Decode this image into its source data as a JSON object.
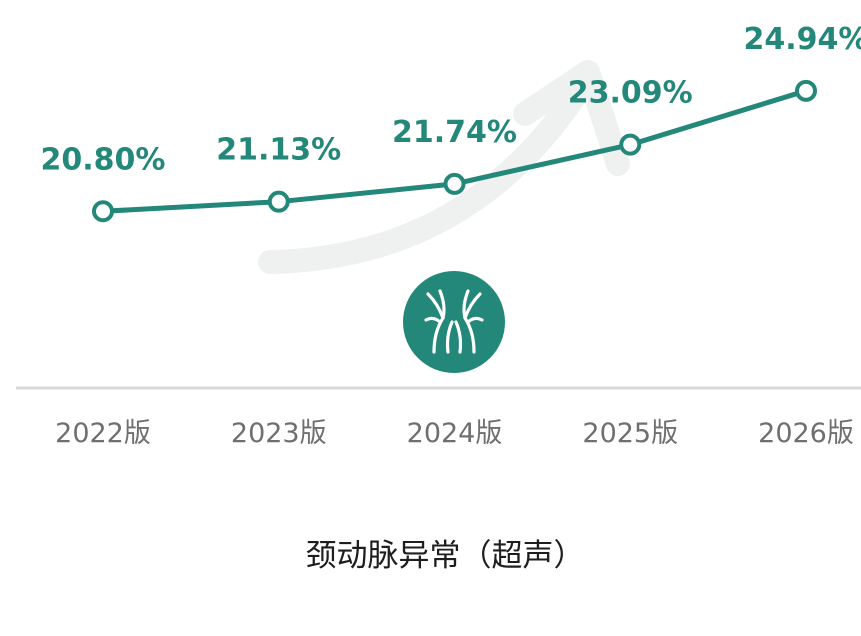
{
  "chart_data": {
    "type": "line",
    "title": "颈动脉异常（超声）",
    "categories": [
      "2022版",
      "2023版",
      "2024版",
      "2025版",
      "2026版"
    ],
    "series": [
      {
        "values": [
          20.8,
          21.13,
          21.74,
          23.09,
          24.94
        ],
        "labels": [
          "20.80%",
          "21.13%",
          "21.74%",
          "23.09%",
          "24.94%"
        ]
      }
    ],
    "unit": "%",
    "ylim": [
      15,
      26
    ],
    "grid": false,
    "legend": "none"
  },
  "colors": {
    "line": "#23877a",
    "label": "#23877a",
    "badge": "#23877a",
    "arrow": "#eef1f0",
    "axis": "#d9d9d9",
    "tick_text": "#6f6f6f",
    "title_text": "#1e1e1e"
  },
  "decorations": {
    "badge_icon": "carotid-artery-icon",
    "arrow_icon": "curved-up-arrow-icon"
  }
}
